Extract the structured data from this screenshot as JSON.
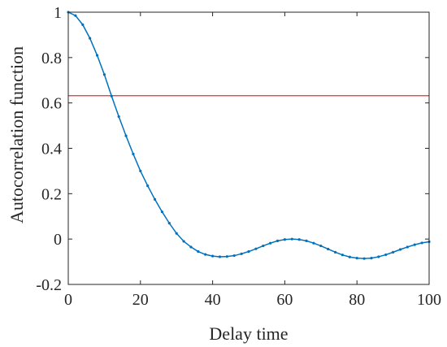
{
  "chart_data": {
    "type": "line",
    "title": "",
    "xlabel": "Delay time",
    "ylabel": "Autocorrelation function",
    "xlim": [
      0,
      100
    ],
    "ylim": [
      -0.2,
      1
    ],
    "xticks": [
      0,
      20,
      40,
      60,
      80,
      100
    ],
    "xtick_labels": [
      "0",
      "20",
      "40",
      "60",
      "80",
      "100"
    ],
    "yticks": [
      -0.2,
      0,
      0.2,
      0.4,
      0.6,
      0.8,
      1
    ],
    "ytick_labels": [
      "-0.2",
      "0",
      "0.2",
      "0.4",
      "0.6",
      "0.8",
      "1"
    ],
    "grid": false,
    "series": [
      {
        "color": "#0072BD",
        "marker": "dot",
        "x": [
          0,
          2,
          4,
          6,
          8,
          10,
          12,
          14,
          16,
          18,
          20,
          22,
          24,
          26,
          28,
          30,
          32,
          34,
          36,
          38,
          40,
          42,
          44,
          46,
          48,
          50,
          52,
          54,
          56,
          58,
          60,
          62,
          64,
          66,
          68,
          70,
          72,
          74,
          76,
          78,
          80,
          82,
          84,
          86,
          88,
          90,
          92,
          94,
          96,
          98,
          100
        ],
        "y": [
          1.0,
          0.985,
          0.945,
          0.885,
          0.81,
          0.725,
          0.63,
          0.54,
          0.455,
          0.375,
          0.3,
          0.235,
          0.175,
          0.12,
          0.07,
          0.025,
          -0.01,
          -0.035,
          -0.055,
          -0.068,
          -0.075,
          -0.078,
          -0.077,
          -0.073,
          -0.065,
          -0.055,
          -0.043,
          -0.03,
          -0.018,
          -0.008,
          -0.002,
          0.0,
          -0.002,
          -0.008,
          -0.018,
          -0.03,
          -0.044,
          -0.058,
          -0.07,
          -0.079,
          -0.084,
          -0.086,
          -0.084,
          -0.078,
          -0.069,
          -0.058,
          -0.046,
          -0.035,
          -0.025,
          -0.017,
          -0.012
        ]
      }
    ],
    "reference_line": {
      "y": 0.632,
      "color": "#E03030"
    }
  }
}
